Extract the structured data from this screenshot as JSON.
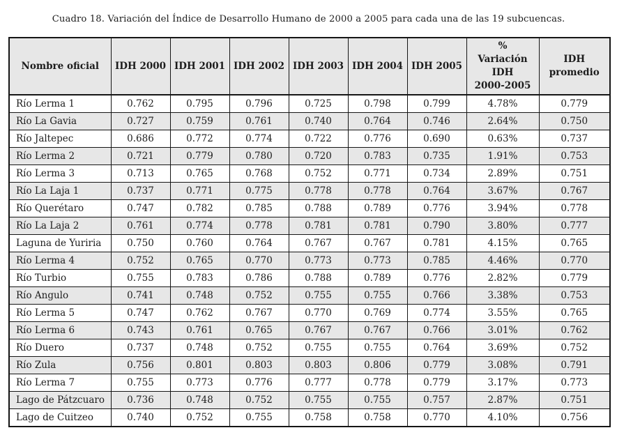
{
  "title": "Cuadro 18. Variación del Índice de Desarrollo Humano de 2000 a 2005 para cada una de las 19 subcuencas.",
  "table": {
    "columns": [
      "Nombre oficial",
      "IDH 2000",
      "IDH 2001",
      "IDH 2002",
      "IDH 2003",
      "IDH 2004",
      "IDH 2005",
      "%\nVariación IDH\n2000-2005",
      "IDH\npromedio"
    ],
    "rows": [
      [
        "Río Lerma 1",
        "0.762",
        "0.795",
        "0.796",
        "0.725",
        "0.798",
        "0.799",
        "4.78%",
        "0.779"
      ],
      [
        "Río La Gavia",
        "0.727",
        "0.759",
        "0.761",
        "0.740",
        "0.764",
        "0.746",
        "2.64%",
        "0.750"
      ],
      [
        "Río Jaltepec",
        "0.686",
        "0.772",
        "0.774",
        "0.722",
        "0.776",
        "0.690",
        "0.63%",
        "0.737"
      ],
      [
        "Río Lerma 2",
        "0.721",
        "0.779",
        "0.780",
        "0.720",
        "0.783",
        "0.735",
        "1.91%",
        "0.753"
      ],
      [
        "Río Lerma 3",
        "0.713",
        "0.765",
        "0.768",
        "0.752",
        "0.771",
        "0.734",
        "2.89%",
        "0.751"
      ],
      [
        "Río La Laja 1",
        "0.737",
        "0.771",
        "0.775",
        "0.778",
        "0.778",
        "0.764",
        "3.67%",
        "0.767"
      ],
      [
        "Río Querétaro",
        "0.747",
        "0.782",
        "0.785",
        "0.788",
        "0.789",
        "0.776",
        "3.94%",
        "0.778"
      ],
      [
        "Río La Laja 2",
        "0.761",
        "0.774",
        "0.778",
        "0.781",
        "0.781",
        "0.790",
        "3.80%",
        "0.777"
      ],
      [
        "Laguna de Yuriria",
        "0.750",
        "0.760",
        "0.764",
        "0.767",
        "0.767",
        "0.781",
        "4.15%",
        "0.765"
      ],
      [
        "Río Lerma 4",
        "0.752",
        "0.765",
        "0.770",
        "0.773",
        "0.773",
        "0.785",
        "4.46%",
        "0.770"
      ],
      [
        "Río Turbio",
        "0.755",
        "0.783",
        "0.786",
        "0.788",
        "0.789",
        "0.776",
        "2.82%",
        "0.779"
      ],
      [
        "Río Angulo",
        "0.741",
        "0.748",
        "0.752",
        "0.755",
        "0.755",
        "0.766",
        "3.38%",
        "0.753"
      ],
      [
        "Río Lerma 5",
        "0.747",
        "0.762",
        "0.767",
        "0.770",
        "0.769",
        "0.774",
        "3.55%",
        "0.765"
      ],
      [
        "Río Lerma 6",
        "0.743",
        "0.761",
        "0.765",
        "0.767",
        "0.767",
        "0.766",
        "3.01%",
        "0.762"
      ],
      [
        "Río Duero",
        "0.737",
        "0.748",
        "0.752",
        "0.755",
        "0.755",
        "0.764",
        "3.69%",
        "0.752"
      ],
      [
        "Río Zula",
        "0.756",
        "0.801",
        "0.803",
        "0.803",
        "0.806",
        "0.779",
        "3.08%",
        "0.791"
      ],
      [
        "Río Lerma 7",
        "0.755",
        "0.773",
        "0.776",
        "0.777",
        "0.778",
        "0.779",
        "3.17%",
        "0.773"
      ],
      [
        "Lago de Pátzcuaro",
        "0.736",
        "0.748",
        "0.752",
        "0.755",
        "0.755",
        "0.757",
        "2.87%",
        "0.751"
      ],
      [
        "Lago de Cuitzeo",
        "0.740",
        "0.752",
        "0.755",
        "0.758",
        "0.758",
        "0.770",
        "4.10%",
        "0.756"
      ]
    ]
  },
  "colors": {
    "stripe": "#e7e7e7",
    "header_bg": "#e7e7e7",
    "border": "#151515",
    "text": "#1c1c1c"
  }
}
